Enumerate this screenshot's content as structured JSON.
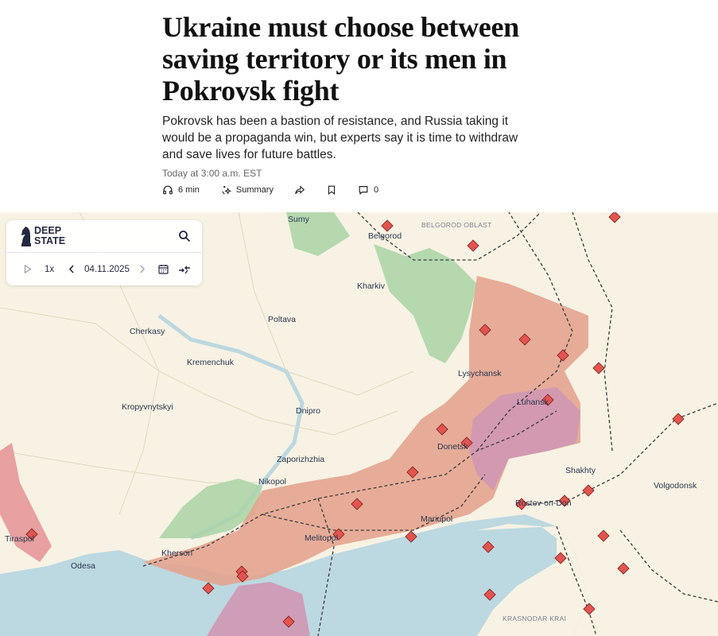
{
  "article": {
    "headline": "Ukraine must choose between saving territory or its men in Pokrovsk fight",
    "dek": "Pokrovsk has been a bastion of resistance, and Russia taking it would be a propaganda win, but experts say it is time to withdraw and save lives for future battles.",
    "timestamp": "Today at 3:00 a.m. EST",
    "actions": {
      "listen": "6 min",
      "summary": "Summary",
      "comments": "0"
    }
  },
  "map": {
    "widget": {
      "logo_line1": "DEEP",
      "logo_line2": "STATE",
      "speed": "1x",
      "date": "04.11.2025"
    },
    "labels": {
      "sumy": "Sumy",
      "belgorod": "Belgorod",
      "belgorod_oblast": "BELGOROD OBLAST",
      "kharkiv": "Kharkiv",
      "poltava": "Poltava",
      "cherkasy": "Cherkasy",
      "kremenchuk": "Kremenchuk",
      "lysychansk": "Lysychansk",
      "luhansk": "Luhansk",
      "kropyvnytskyi": "Kropyvnytskyi",
      "dnipro": "Dnipro",
      "donetsk": "Donetsk",
      "zaporizhzhia": "Zaporizhzhia",
      "nikopol": "Nikopol",
      "shakhty": "Shakhty",
      "volgodonsk": "Volgodonsk",
      "rostov": "Rostov-on-Don",
      "mariupol": "Mariupol",
      "melitopol": "Melitopol",
      "kherson": "Kherson",
      "odesa": "Odesa",
      "tiraspol": "Tiraspol",
      "krasnodar": "KRASNODAR KRAI"
    },
    "colors": {
      "land": "#f7f2e3",
      "occupied": "#e3a48f",
      "occupied_pre2022": "#cf97b4",
      "liberated": "#a9d3a5",
      "water": "#bcd8e0",
      "marker": "#e2544f"
    }
  }
}
